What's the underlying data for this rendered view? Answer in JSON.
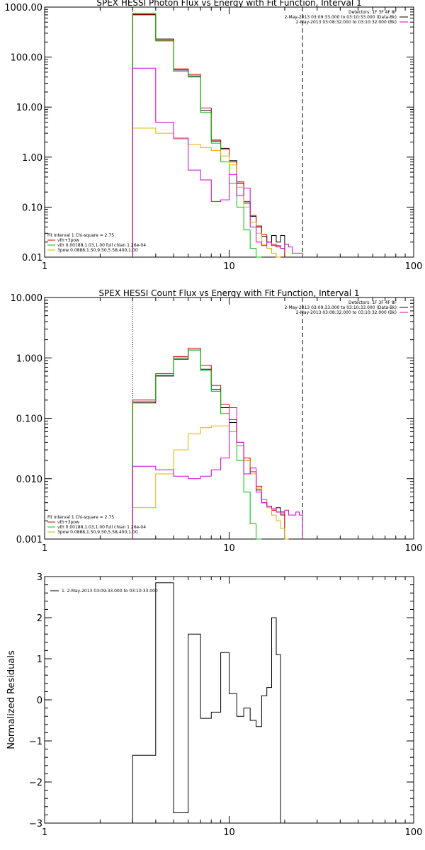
{
  "chart_data": [
    {
      "type": "line",
      "title": "SPEX HESSI Photon Flux vs Energy with Fit Function, Interval 1",
      "xscale": "log",
      "yscale": "log",
      "xlim": [
        1,
        100
      ],
      "ylim": [
        0.01,
        1000
      ],
      "xticks": [
        "1",
        "10",
        "100"
      ],
      "yticks": [
        "0.01",
        "0.10",
        "1.00",
        "10.00",
        "100.00",
        "1000.00"
      ],
      "edges": [
        3,
        4,
        5,
        6,
        7,
        8,
        9,
        10,
        11,
        12,
        13,
        14,
        15,
        16,
        17,
        18,
        19,
        20,
        21,
        22,
        23,
        24,
        25
      ],
      "fit_range": [
        3,
        25
      ],
      "legend_right": [
        {
          "text": "Detectors: 1F 3F 4F 8F",
          "color": "#000000"
        },
        {
          "text": "2-May-2013 03:09:33.000 to 03:10:33.000 (Data-Bk)",
          "color": "#000000"
        },
        {
          "text": "2-May-2013 03:08:32.000 to 03:10:32.000 (Bk)",
          "color": "#d000d0"
        }
      ],
      "legend_left": [
        {
          "text": "Fit Interval 1    Chi-square = 2.75",
          "color": "#000000"
        },
        {
          "text": "vth+3pow",
          "color": "#d00000"
        },
        {
          "text": "vth 0.00188,1.03,1.00  full chian 1.26e-04",
          "color": "#00c000"
        },
        {
          "text": "3pow 0.0888,1.50,9.50,5.58,400,1.00",
          "color": "#e0b000"
        }
      ],
      "series": [
        {
          "name": "Data-Bk",
          "color": "#000000",
          "values": [
            700,
            230,
            55,
            42,
            8.5,
            2.1,
            1.5,
            0.85,
            0.3,
            0.12,
            0.065,
            0.04,
            0.026,
            0.02,
            0.027,
            0.02,
            0.027
          ]
        },
        {
          "name": "vth+3pow",
          "color": "#d00000",
          "values": [
            720,
            215,
            58,
            45,
            9.6,
            2.2,
            1.45,
            0.8,
            0.32,
            0.13,
            0.068,
            0.042,
            0.028,
            0.02,
            0.018,
            0.016,
            0.015
          ]
        },
        {
          "name": "vth",
          "color": "#00c000",
          "values": [
            750,
            210,
            52,
            40,
            7.8,
            1.9,
            0.8,
            0.3,
            0.1,
            0.035,
            0.015,
            0.01
          ]
        },
        {
          "name": "3pow",
          "color": "#e0b000",
          "values": [
            3.8,
            3.0,
            2.3,
            1.8,
            1.55,
            1.35,
            1.05,
            0.7,
            0.25,
            0.1,
            0.05,
            0.03,
            0.018,
            0.015,
            0.012,
            0.01
          ]
        },
        {
          "name": "Bk",
          "color": "#d000d0",
          "values": [
            60,
            5.0,
            2.4,
            0.55,
            0.35,
            0.13,
            0.14,
            0.45,
            0.17,
            0.24,
            0.04,
            0.02,
            0.017,
            0.02,
            0.017,
            0.017,
            0.015,
            0.018,
            0.016,
            0.012,
            0.012,
            0.012
          ]
        }
      ]
    },
    {
      "type": "line",
      "title": "SPEX HESSI Count Flux vs Energy with Fit Function, Interval 1",
      "xscale": "log",
      "yscale": "log",
      "xlim": [
        1,
        100
      ],
      "ylim": [
        0.001,
        10
      ],
      "xticks": [
        "1",
        "10",
        "100"
      ],
      "yticks": [
        "0.001",
        "0.010",
        "0.100",
        "1.000",
        "10.000"
      ],
      "edges": [
        3,
        4,
        5,
        6,
        7,
        8,
        9,
        10,
        11,
        12,
        13,
        14,
        15,
        16,
        17,
        18,
        19,
        20,
        21,
        22,
        23,
        24,
        25
      ],
      "fit_range": [
        3,
        25
      ],
      "legend_right": [
        {
          "text": "Detectors: 1F 3F 4F 8F",
          "color": "#000000"
        },
        {
          "text": "2-May-2013 03:09:33.000 to 03:10:33.000 (Data-Bk)",
          "color": "#000000"
        },
        {
          "text": "2-May-2013 03:08:32.000 to 03:10:32.000 (Bk)",
          "color": "#d000d0"
        }
      ],
      "legend_left": [
        {
          "text": "Fit Interval 1    Chi-square = 2.75",
          "color": "#000000"
        },
        {
          "text": "vth+3pow",
          "color": "#d00000"
        },
        {
          "text": "vth 0.00188,1.03,1.00  full chian 1.26e-04",
          "color": "#00c000"
        },
        {
          "text": "3pow 0.0888,1.50,9.50,5.58,400,1.00",
          "color": "#e0b000"
        }
      ],
      "series": [
        {
          "name": "Data-Bk",
          "color": "#000000",
          "values": [
            0.18,
            0.5,
            0.95,
            1.35,
            0.65,
            0.3,
            0.15,
            0.085,
            0.035,
            0.02,
            0.012,
            0.0065,
            0.004,
            0.0035,
            0.003,
            0.0033,
            0.0028
          ]
        },
        {
          "name": "vth+3pow",
          "color": "#d00000",
          "values": [
            0.2,
            0.55,
            1.05,
            1.45,
            0.75,
            0.35,
            0.17,
            0.095,
            0.04,
            0.022,
            0.013,
            0.0075,
            0.0045,
            0.0035,
            0.003,
            0.0028,
            0.0025
          ]
        },
        {
          "name": "vth",
          "color": "#00c000",
          "values": [
            0.19,
            0.52,
            1.0,
            1.35,
            0.62,
            0.28,
            0.12,
            0.06,
            0.02,
            0.006,
            0.0018,
            0.0008
          ]
        },
        {
          "name": "3pow",
          "color": "#e0b000",
          "values": [
            0.0033,
            0.012,
            0.03,
            0.055,
            0.07,
            0.075,
            0.075,
            0.06,
            0.035,
            0.02,
            0.012,
            0.007,
            0.0045,
            0.0033,
            0.0025,
            0.002,
            0.0015,
            0.001
          ]
        },
        {
          "name": "Bk",
          "color": "#d000d0",
          "values": [
            0.016,
            0.014,
            0.011,
            0.01,
            0.011,
            0.014,
            0.022,
            0.15,
            0.04,
            0.012,
            0.015,
            0.006,
            0.004,
            0.0035,
            0.0032,
            0.0028,
            0.0026,
            0.003,
            0.0025,
            0.0025,
            0.0028,
            0.0025
          ]
        }
      ]
    },
    {
      "type": "line",
      "title": "",
      "ylabel": "Normalized Residuals",
      "xscale": "log",
      "yscale": "linear",
      "xlim": [
        1,
        100
      ],
      "ylim": [
        -3,
        3
      ],
      "xticks": [
        "1",
        "10",
        "100"
      ],
      "yticks": [
        "−3",
        "−2",
        "−1",
        "0",
        "1",
        "2",
        "3"
      ],
      "legend": "1. 2-May-2013 03:09:33.000 to 03:10:33.000",
      "edges": [
        3,
        4,
        5,
        6,
        7,
        8,
        9,
        10,
        11,
        12,
        13,
        14,
        15,
        16,
        17,
        18,
        19,
        20,
        21,
        22,
        23,
        24,
        25
      ],
      "series": [
        {
          "name": "1. 2-May-2013 03:09:33.000 to 03:10:33.000",
          "color": "#000000",
          "values": [
            -1.35,
            2.85,
            -2.75,
            1.6,
            -0.45,
            -0.3,
            1.15,
            0.15,
            -0.4,
            -0.2,
            -0.5,
            -0.65,
            0.1,
            0.3,
            2.0,
            1.1
          ]
        }
      ]
    }
  ]
}
